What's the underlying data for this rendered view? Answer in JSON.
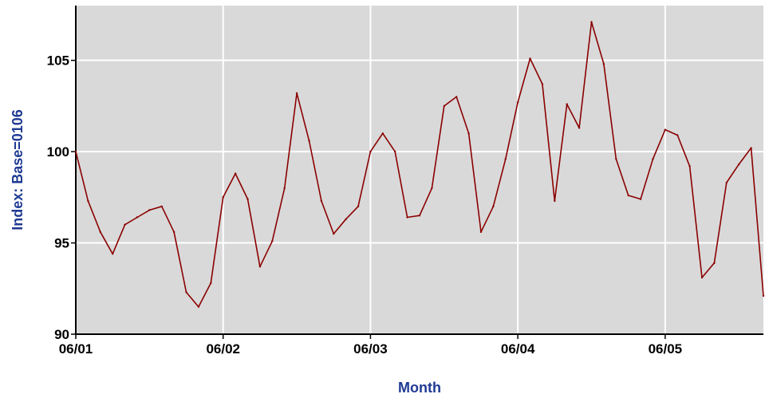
{
  "chart_data": {
    "type": "line",
    "title": "",
    "xlabel": "Month",
    "ylabel": "Index: Base=0106",
    "ylim": [
      90,
      108
    ],
    "yticks": [
      90,
      95,
      100,
      105
    ],
    "xlim": [
      0,
      56
    ],
    "x_tick_labels": [
      "06/01",
      "06/02",
      "06/03",
      "06/04",
      "06/05"
    ],
    "x_tick_positions": [
      0,
      12,
      24,
      36,
      48
    ],
    "grid": true,
    "legend": "none",
    "colors": {
      "line": "#8b0000",
      "plot_background": "#d9d9d9",
      "grid": "#ffffff",
      "axis_title": "#1f3a93"
    },
    "series": [
      {
        "x": [
          0,
          1,
          2,
          3,
          4,
          5,
          6,
          7,
          8,
          9,
          10,
          11,
          12,
          13,
          14,
          15,
          16,
          17,
          18,
          19,
          20,
          21,
          22,
          23,
          24,
          25,
          26,
          27,
          28,
          29,
          30,
          31,
          32,
          33,
          34,
          35,
          36,
          37,
          38,
          39,
          40,
          41,
          42,
          43,
          44,
          45,
          46,
          47,
          48,
          49,
          50,
          51,
          52,
          53,
          54,
          55,
          56
        ],
        "values": [
          100.0,
          97.3,
          95.6,
          94.4,
          96.0,
          96.4,
          96.8,
          97.0,
          95.6,
          92.3,
          91.5,
          92.8,
          97.5,
          98.8,
          97.4,
          93.7,
          95.1,
          98.0,
          103.2,
          100.6,
          97.3,
          95.5,
          96.3,
          97.0,
          100.0,
          101.0,
          100.0,
          96.4,
          96.5,
          98.0,
          102.5,
          103.0,
          101.0,
          95.6,
          97.0,
          99.6,
          102.7,
          105.1,
          103.7,
          97.3,
          102.6,
          101.3,
          107.1,
          104.8,
          99.6,
          97.6,
          97.4,
          99.6,
          101.2,
          100.9,
          99.2,
          93.1,
          93.9,
          98.3,
          99.3,
          100.2,
          92.1
        ]
      }
    ]
  }
}
